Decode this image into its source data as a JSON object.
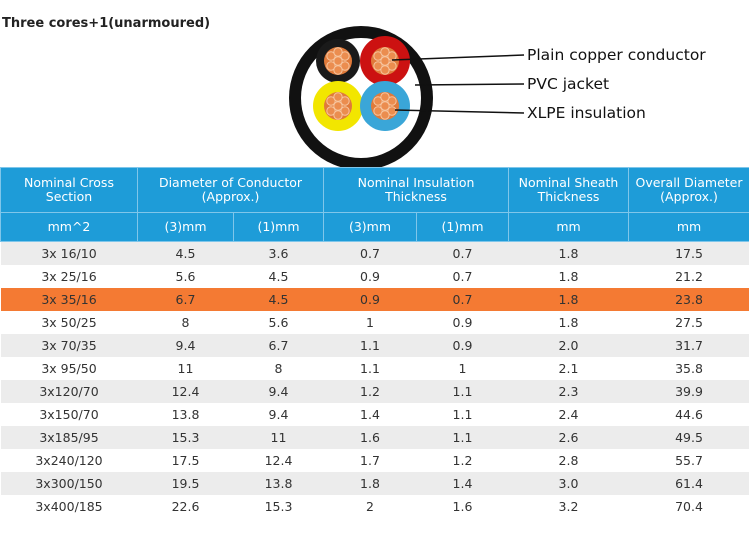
{
  "title": "Three cores+1(unarmoured)",
  "diagram": {
    "labels": [
      "Plain copper conductor",
      "PVC jacket",
      "XLPE insulation"
    ],
    "core_colors": [
      "#1a1a1a",
      "#cc1111",
      "#f2e600",
      "#3aa6d8"
    ],
    "sheath_color": "#111111",
    "conductor_color": "#e07a3a"
  },
  "table": {
    "header_top": [
      "Nominal Cross Section",
      "Diameter of Conductor (Approx.)",
      "Nominal Insulation Thickness",
      "Nominal Sheath Thickness",
      "Overall Diameter (Approx.)"
    ],
    "header_units": [
      "mm^2",
      "(3)mm",
      "(1)mm",
      "(3)mm",
      "(1)mm",
      "mm",
      "mm"
    ],
    "highlight_row_index": 2,
    "highlight_color": "#f47a33",
    "header_color": "#1e9cd8",
    "rows": [
      [
        "3x 16/10",
        "4.5",
        "3.6",
        "0.7",
        "0.7",
        "1.8",
        "17.5"
      ],
      [
        "3x 25/16",
        "5.6",
        "4.5",
        "0.9",
        "0.7",
        "1.8",
        "21.2"
      ],
      [
        "3x 35/16",
        "6.7",
        "4.5",
        "0.9",
        "0.7",
        "1.8",
        "23.8"
      ],
      [
        "3x 50/25",
        "8",
        "5.6",
        "1",
        "0.9",
        "1.8",
        "27.5"
      ],
      [
        "3x 70/35",
        "9.4",
        "6.7",
        "1.1",
        "0.9",
        "2.0",
        "31.7"
      ],
      [
        "3x 95/50",
        "11",
        "8",
        "1.1",
        "1",
        "2.1",
        "35.8"
      ],
      [
        "3x120/70",
        "12.4",
        "9.4",
        "1.2",
        "1.1",
        "2.3",
        "39.9"
      ],
      [
        "3x150/70",
        "13.8",
        "9.4",
        "1.4",
        "1.1",
        "2.4",
        "44.6"
      ],
      [
        "3x185/95",
        "15.3",
        "11",
        "1.6",
        "1.1",
        "2.6",
        "49.5"
      ],
      [
        "3x240/120",
        "17.5",
        "12.4",
        "1.7",
        "1.2",
        "2.8",
        "55.7"
      ],
      [
        "3x300/150",
        "19.5",
        "13.8",
        "1.8",
        "1.4",
        "3.0",
        "61.4"
      ],
      [
        "3x400/185",
        "22.6",
        "15.3",
        "2",
        "1.6",
        "3.2",
        "70.4"
      ]
    ]
  }
}
